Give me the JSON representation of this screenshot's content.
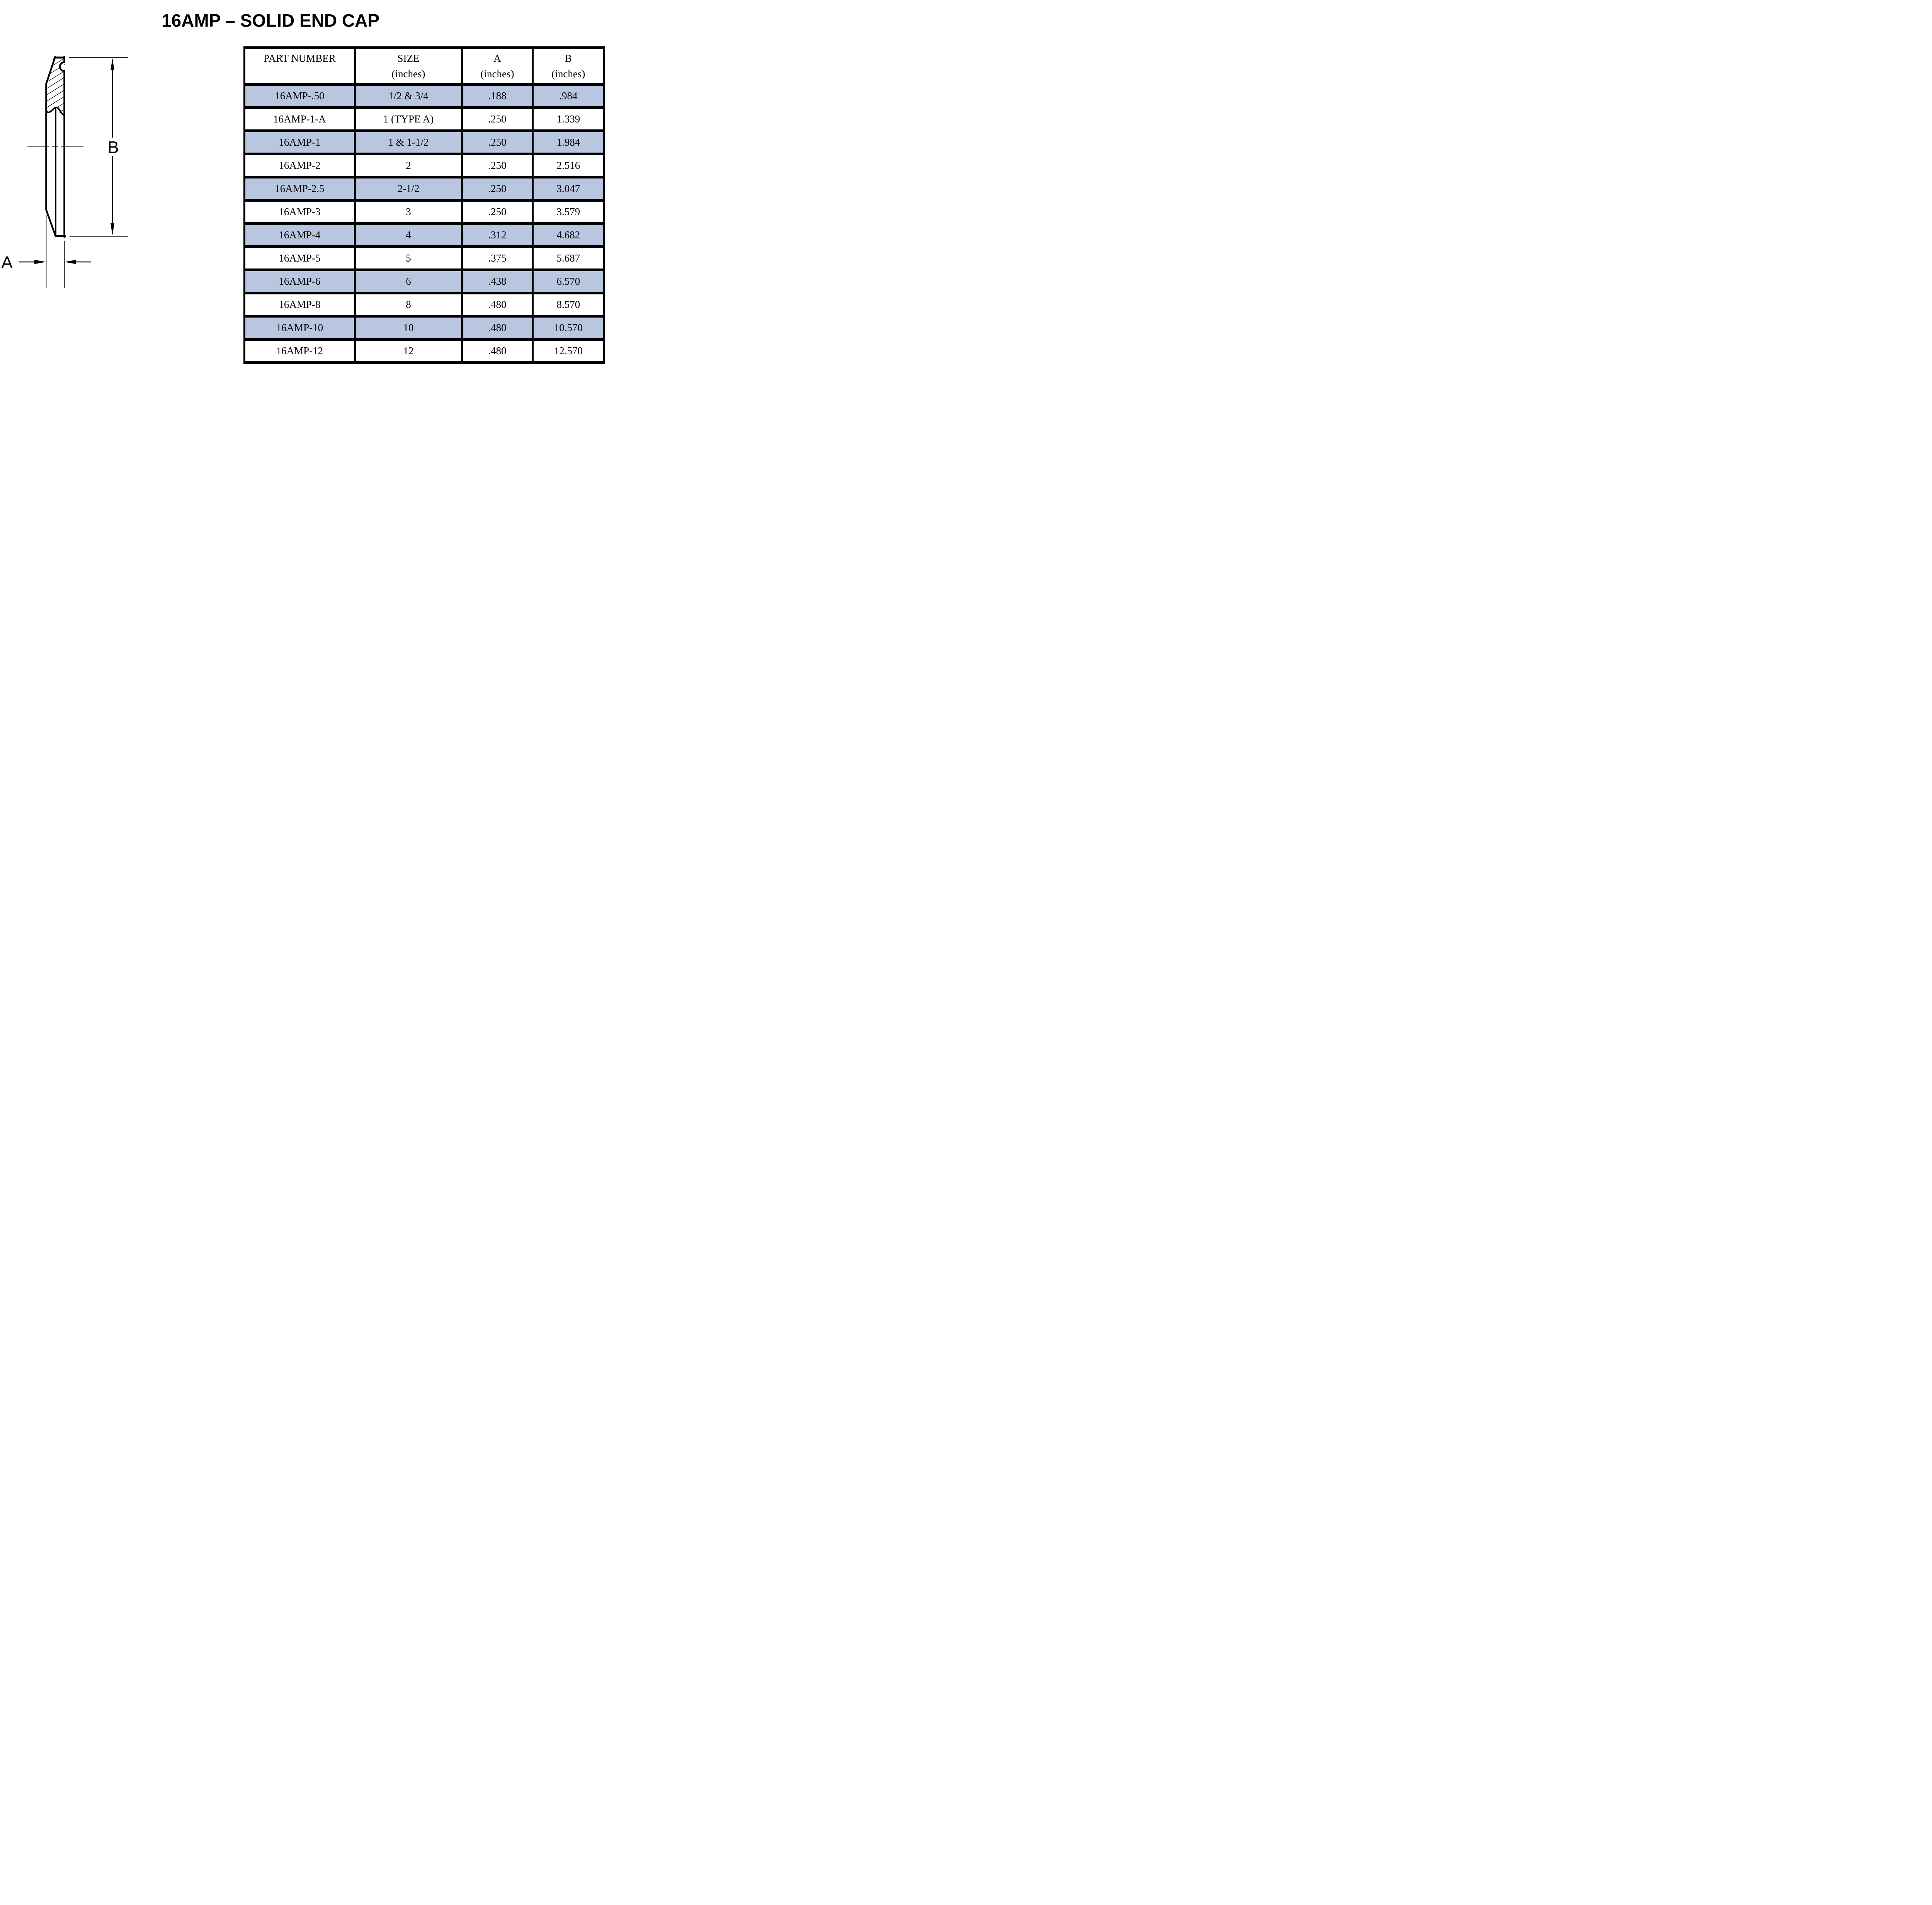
{
  "title": "16AMP – SOLID END CAP",
  "diagram": {
    "label_a": "A",
    "label_b": "B"
  },
  "table": {
    "highlight_color": "#b9c6e0",
    "headers": [
      {
        "line1": "PART NUMBER",
        "line2": ""
      },
      {
        "line1": "SIZE",
        "line2": "(inches)"
      },
      {
        "line1": "A",
        "line2": "(inches)"
      },
      {
        "line1": "B",
        "line2": "(inches)"
      }
    ],
    "rows": [
      {
        "part": "16AMP-.50",
        "size": "1/2 & 3/4",
        "a": ".188",
        "b": ".984",
        "highlighted": true
      },
      {
        "part": "16AMP-1-A",
        "size": "1 (TYPE A)",
        "a": ".250",
        "b": "1.339",
        "highlighted": false
      },
      {
        "part": "16AMP-1",
        "size": "1 & 1-1/2",
        "a": ".250",
        "b": "1.984",
        "highlighted": true
      },
      {
        "part": "16AMP-2",
        "size": "2",
        "a": ".250",
        "b": "2.516",
        "highlighted": false
      },
      {
        "part": "16AMP-2.5",
        "size": "2-1/2",
        "a": ".250",
        "b": "3.047",
        "highlighted": true
      },
      {
        "part": "16AMP-3",
        "size": "3",
        "a": ".250",
        "b": "3.579",
        "highlighted": false
      },
      {
        "part": "16AMP-4",
        "size": "4",
        "a": ".312",
        "b": "4.682",
        "highlighted": true
      },
      {
        "part": "16AMP-5",
        "size": "5",
        "a": ".375",
        "b": "5.687",
        "highlighted": false
      },
      {
        "part": "16AMP-6",
        "size": "6",
        "a": ".438",
        "b": "6.570",
        "highlighted": true
      },
      {
        "part": "16AMP-8",
        "size": "8",
        "a": ".480",
        "b": "8.570",
        "highlighted": false
      },
      {
        "part": "16AMP-10",
        "size": "10",
        "a": ".480",
        "b": "10.570",
        "highlighted": true
      },
      {
        "part": "16AMP-12",
        "size": "12",
        "a": ".480",
        "b": "12.570",
        "highlighted": false
      }
    ]
  }
}
